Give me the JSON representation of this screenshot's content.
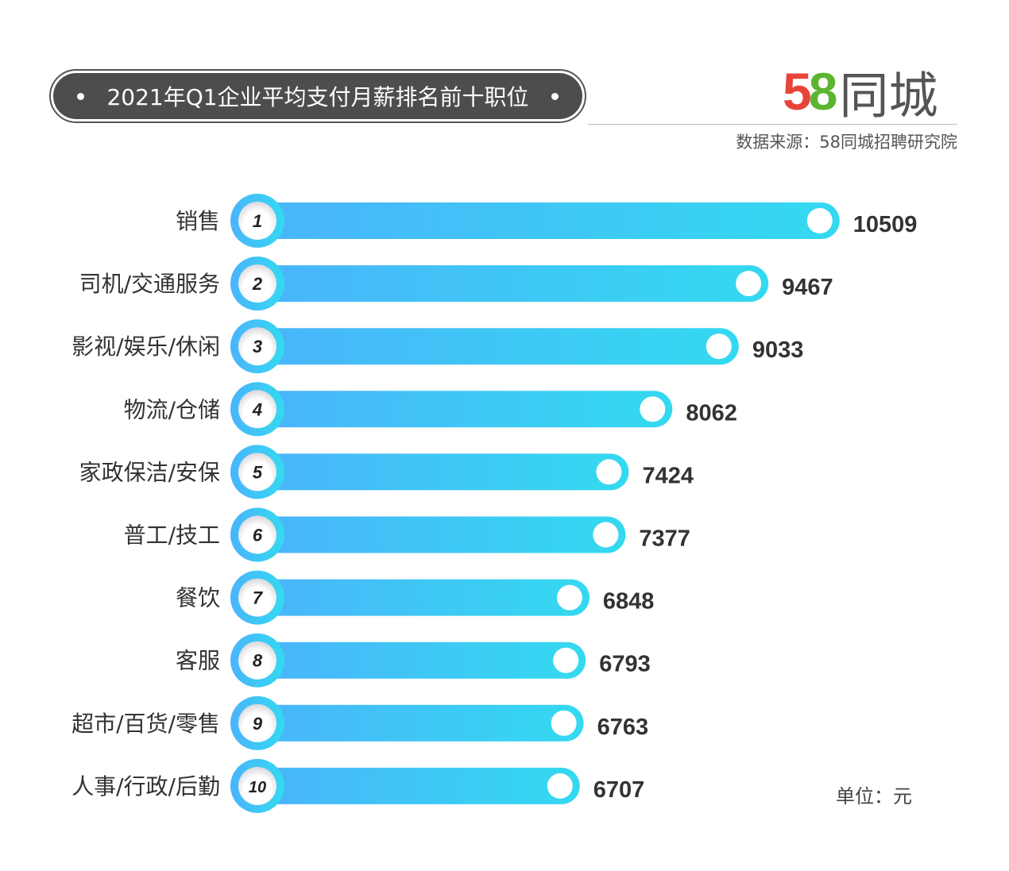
{
  "title": "2021年Q1企业平均支付月薪排名前十职位",
  "logo": {
    "number": "58",
    "text": "同城",
    "colors": [
      "#e8443a",
      "#1f7fd1",
      "#5cb531",
      "#f0902a"
    ]
  },
  "source": "数据来源：58同城招聘研究院",
  "unit": "单位：元",
  "chart_data": {
    "type": "bar",
    "orientation": "horizontal",
    "title": "2021年Q1企业平均支付月薪排名前十职位",
    "categories": [
      "销售",
      "司机/交通服务",
      "影视/娱乐/休闲",
      "物流/仓储",
      "家政保洁/安保",
      "普工/技工",
      "餐饮",
      "客服",
      "超市/百货/零售",
      "人事/行政/后勤"
    ],
    "ranks": [
      "1",
      "2",
      "3",
      "4",
      "5",
      "6",
      "7",
      "8",
      "9",
      "10"
    ],
    "values": [
      10509,
      9467,
      9033,
      8062,
      7424,
      7377,
      6848,
      6793,
      6763,
      6707
    ],
    "ylabel": "单位：元",
    "colors": {
      "start": "#4ab4fb",
      "end": "#34d9f0",
      "text": "#333333"
    }
  }
}
